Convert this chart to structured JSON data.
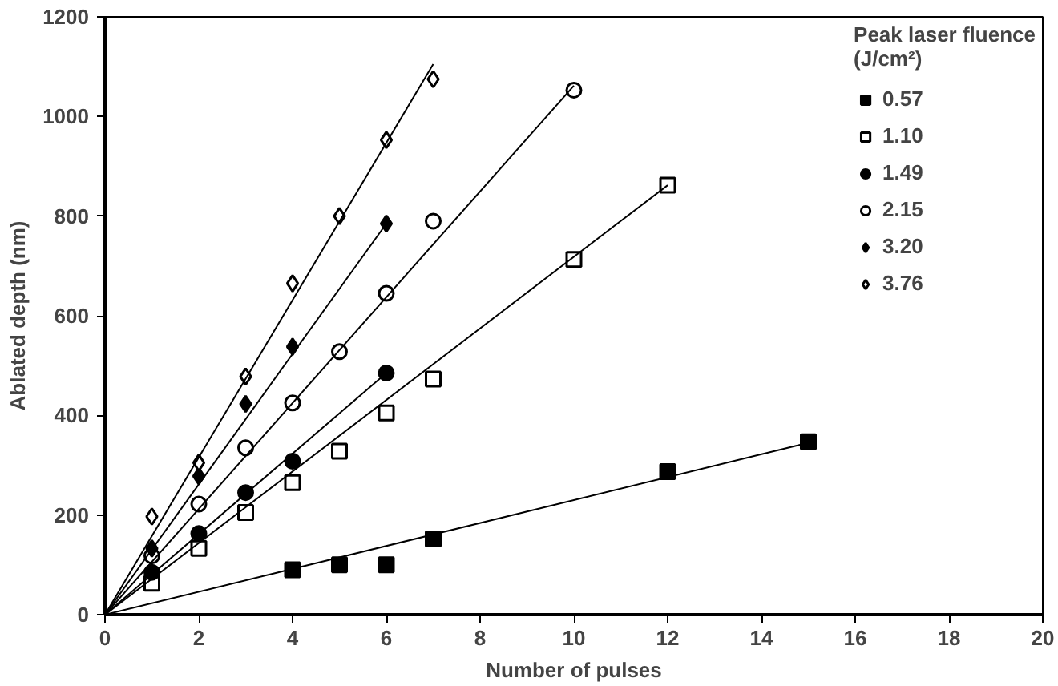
{
  "chart_data": {
    "type": "scatter",
    "xlabel": "Number of pulses",
    "ylabel": "Ablated depth (nm)",
    "legend_title": "Peak laser fluence\n(J/cm²)",
    "xlim": [
      0,
      20
    ],
    "ylim": [
      0,
      1200
    ],
    "xticks": [
      0,
      2,
      4,
      6,
      8,
      10,
      12,
      14,
      16,
      18,
      20
    ],
    "yticks": [
      0,
      200,
      400,
      600,
      800,
      1000,
      1200
    ],
    "grid": false,
    "legend": "top right",
    "series": [
      {
        "name": "0.57",
        "marker": "square",
        "color": "#000000",
        "x": [
          4,
          5,
          6,
          7,
          12,
          15
        ],
        "values": [
          90,
          100,
          100,
          152,
          287,
          347
        ]
      },
      {
        "name": "1.10",
        "marker": "square",
        "color": "#ffffff",
        "x": [
          1,
          2,
          3,
          4,
          5,
          6,
          7,
          10,
          12
        ],
        "values": [
          63,
          133,
          205,
          265,
          328,
          405,
          473,
          713,
          862
        ]
      },
      {
        "name": "1.49",
        "marker": "circle",
        "color": "#000000",
        "x": [
          1,
          2,
          3,
          4,
          6
        ],
        "values": [
          85,
          163,
          245,
          308,
          485
        ]
      },
      {
        "name": "2.15",
        "marker": "circle",
        "color": "#ffffff",
        "x": [
          1,
          2,
          3,
          4,
          5,
          6,
          7,
          10
        ],
        "values": [
          118,
          222,
          335,
          425,
          528,
          645,
          790,
          1053
        ]
      },
      {
        "name": "3.20",
        "marker": "diamond",
        "color": "#000000",
        "x": [
          1,
          2,
          3,
          4,
          6
        ],
        "values": [
          133,
          278,
          423,
          538,
          785
        ]
      },
      {
        "name": "3.76",
        "marker": "diamond",
        "color": "#ffffff",
        "x": [
          1,
          2,
          3,
          4,
          5,
          6,
          7
        ],
        "values": [
          197,
          305,
          478,
          665,
          800,
          953,
          1075
        ]
      },
      {
        "type": "line",
        "color": "#000000",
        "x": [
          0,
          15
        ],
        "values": [
          0,
          345
        ]
      },
      {
        "type": "line",
        "color": "#000000",
        "x": [
          0,
          12
        ],
        "values": [
          0,
          862
        ]
      },
      {
        "type": "line",
        "color": "#000000",
        "x": [
          0,
          6
        ],
        "values": [
          0,
          485
        ]
      },
      {
        "type": "line",
        "color": "#000000",
        "x": [
          0,
          10
        ],
        "values": [
          0,
          1062
        ]
      },
      {
        "type": "line",
        "color": "#000000",
        "x": [
          0,
          6
        ],
        "values": [
          0,
          785
        ]
      },
      {
        "type": "line",
        "color": "#000000",
        "x": [
          0,
          7
        ],
        "values": [
          0,
          1105
        ]
      }
    ]
  }
}
